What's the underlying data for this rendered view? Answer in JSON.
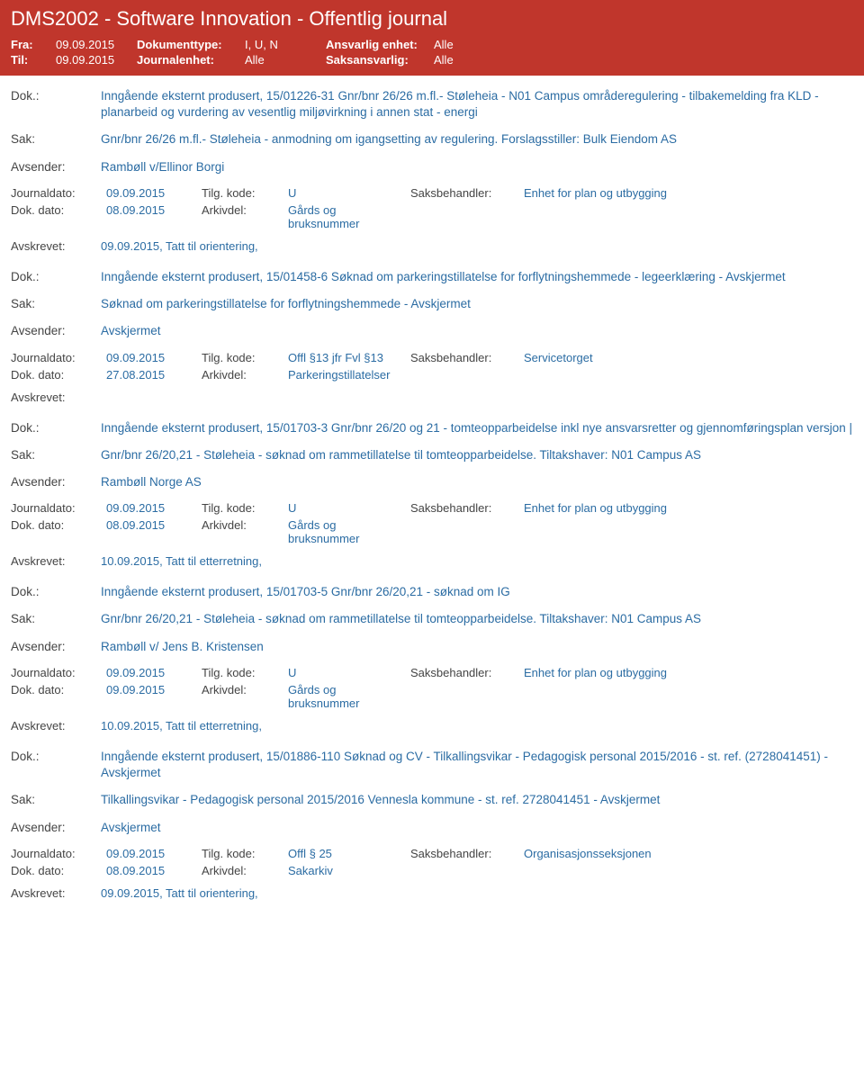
{
  "header": {
    "title": "DMS2002 - Software Innovation - Offentlig journal",
    "fra_label": "Fra:",
    "fra_value": "09.09.2015",
    "til_label": "Til:",
    "til_value": "09.09.2015",
    "dokumenttype_label": "Dokumenttype:",
    "dokumenttype_value": "I, U, N",
    "journalenhet_label": "Journalenhet:",
    "journalenhet_value": "Alle",
    "ansvarlig_label": "Ansvarlig enhet:",
    "ansvarlig_value": "Alle",
    "saksansvarlig_label": "Saksansvarlig:",
    "saksansvarlig_value": "Alle"
  },
  "labels": {
    "dok": "Dok.:",
    "sak": "Sak:",
    "avsender": "Avsender:",
    "journaldato": "Journaldato:",
    "tilgkode": "Tilg. kode:",
    "saksbehandler": "Saksbehandler:",
    "dokdato": "Dok. dato:",
    "arkivdel": "Arkivdel:",
    "avskrevet": "Avskrevet:"
  },
  "entries": [
    {
      "dok": "Inngående eksternt produsert, 15/01226-31 Gnr/bnr 26/26 m.fl.- Støleheia - N01 Campus områderegulering - tilbakemelding fra KLD - planarbeid og vurdering av vesentlig miljøvirkning i annen stat - energi",
      "sak": "Gnr/bnr 26/26 m.fl.- Støleheia - anmodning om igangsetting av regulering. Forslagsstiller: Bulk Eiendom AS",
      "avsender": "Rambøll v/Ellinor Borgi",
      "journaldato": "09.09.2015",
      "tilgkode": "U",
      "saksbehandler": "Enhet for plan og utbygging",
      "dokdato": "08.09.2015",
      "arkivdel": "Gårds og bruksnummer",
      "avskrevet": "09.09.2015, Tatt til orientering,"
    },
    {
      "dok": "Inngående eksternt produsert, 15/01458-6 Søknad om parkeringstillatelse for forflytningshemmede - legeerklæring - Avskjermet",
      "sak": "Søknad om parkeringstillatelse for forflytningshemmede - Avskjermet",
      "avsender": "Avskjermet",
      "journaldato": "09.09.2015",
      "tilgkode": "Offl §13 jfr Fvl §13",
      "saksbehandler": "Servicetorget",
      "dokdato": "27.08.2015",
      "arkivdel": "Parkeringstillatelser",
      "avskrevet": ""
    },
    {
      "dok": "Inngående eksternt produsert, 15/01703-3 Gnr/bnr 26/20 og 21 - tomteopparbeidelse inkl nye ansvarsretter og gjennomføringsplan versjon |",
      "sak": "Gnr/bnr 26/20,21 - Støleheia - søknad om rammetillatelse til tomteopparbeidelse. Tiltakshaver: N01 Campus AS",
      "avsender": "Rambøll Norge AS",
      "journaldato": "09.09.2015",
      "tilgkode": "U",
      "saksbehandler": "Enhet for plan og utbygging",
      "dokdato": "08.09.2015",
      "arkivdel": "Gårds og bruksnummer",
      "avskrevet": "10.09.2015, Tatt til etterretning,"
    },
    {
      "dok": "Inngående eksternt produsert, 15/01703-5 Gnr/bnr 26/20,21 - søknad om IG",
      "sak": "Gnr/bnr 26/20,21 - Støleheia - søknad om rammetillatelse til tomteopparbeidelse. Tiltakshaver: N01 Campus AS",
      "avsender": "Rambøll v/ Jens B. Kristensen",
      "journaldato": "09.09.2015",
      "tilgkode": "U",
      "saksbehandler": "Enhet for plan og utbygging",
      "dokdato": "09.09.2015",
      "arkivdel": "Gårds og bruksnummer",
      "avskrevet": "10.09.2015, Tatt til etterretning,"
    },
    {
      "dok": "Inngående eksternt produsert, 15/01886-110 Søknad og CV - Tilkallingsvikar - Pedagogisk personal 2015/2016 - st. ref. (2728041451) - Avskjermet",
      "sak": "Tilkallingsvikar - Pedagogisk personal 2015/2016 Vennesla kommune - st. ref. 2728041451 - Avskjermet",
      "avsender": "Avskjermet",
      "journaldato": "09.09.2015",
      "tilgkode": "Offl § 25",
      "saksbehandler": "Organisasjonsseksjonen",
      "dokdato": "08.09.2015",
      "arkivdel": "Sakarkiv",
      "avskrevet": "09.09.2015, Tatt til orientering,"
    }
  ]
}
